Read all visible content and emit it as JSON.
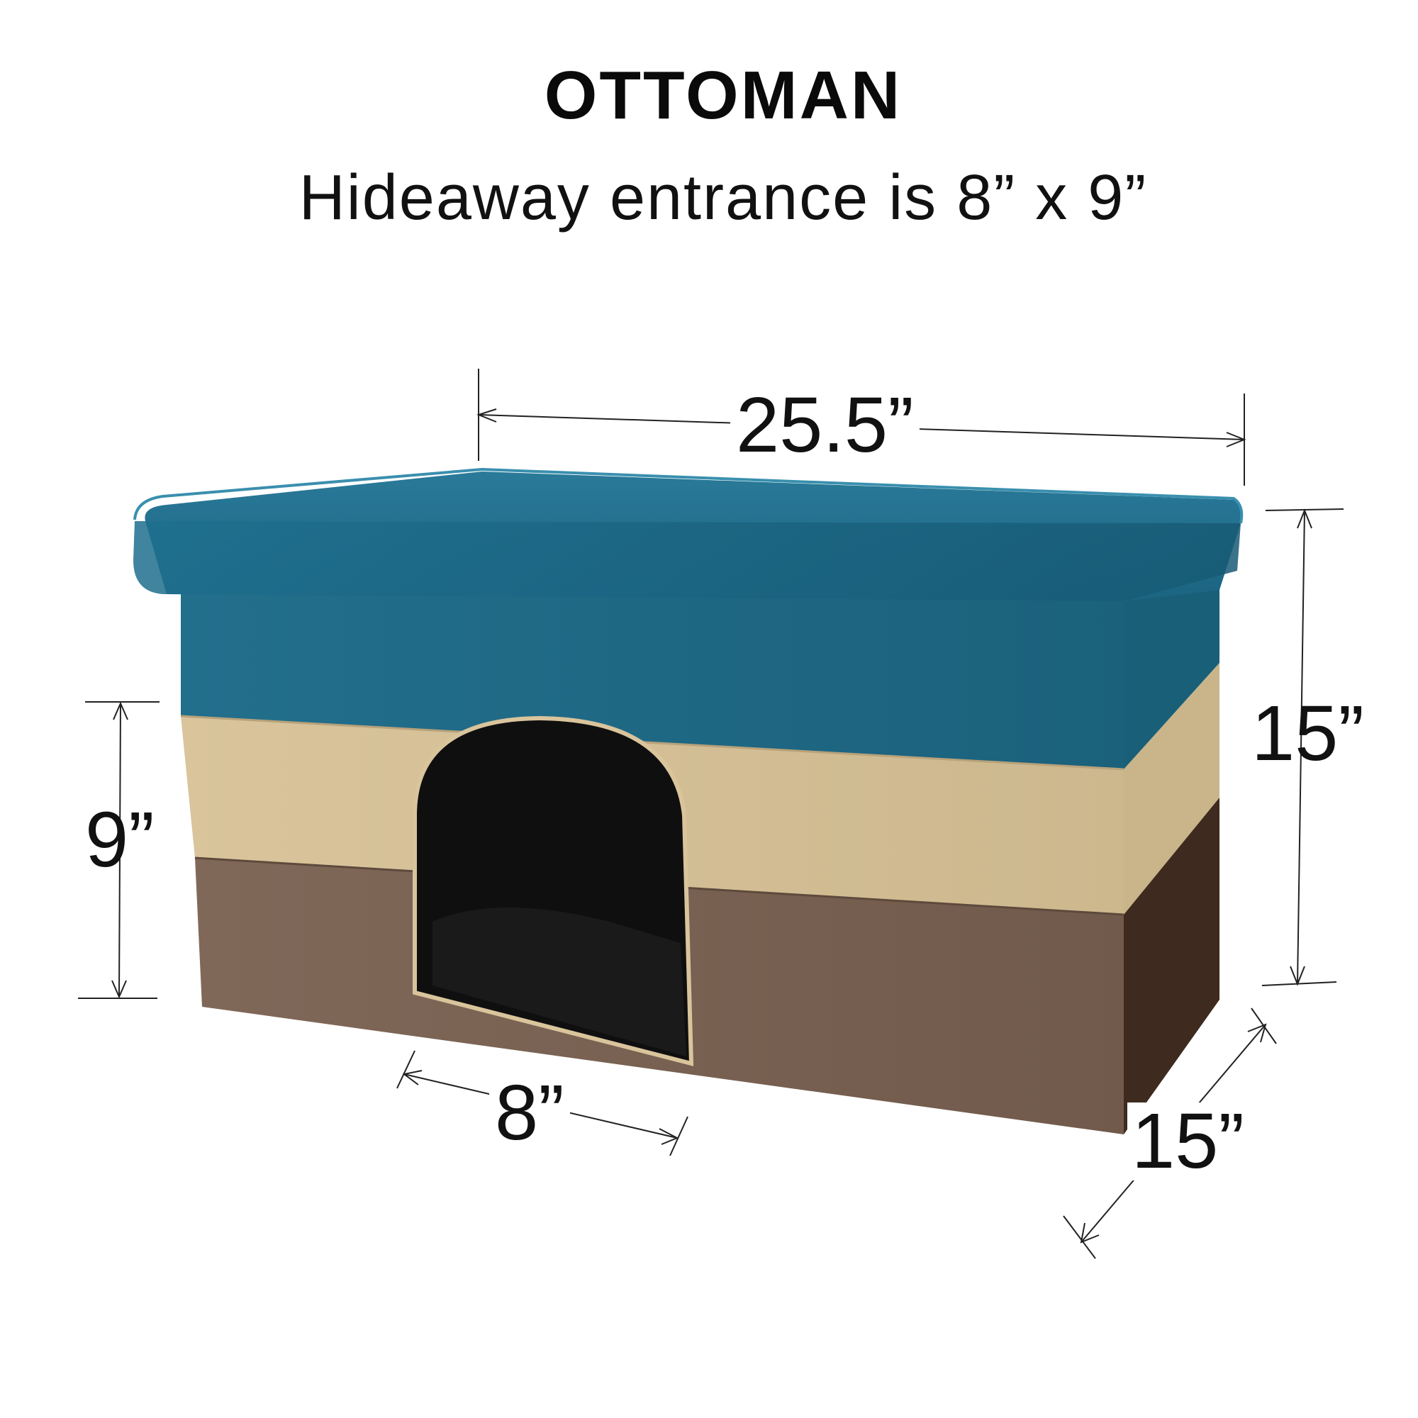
{
  "header": {
    "title": "OTTOMAN",
    "subtitle": "Hideaway entrance is 8” x 9”"
  },
  "dimensions": {
    "width": "25.5”",
    "height": "15”",
    "depth": "15”",
    "entrance_width": "8”",
    "entrance_height": "9”"
  },
  "colors": {
    "lid": "#1f6e8c",
    "middle_band": "#d6c198",
    "bottom_band": "#7a6252",
    "entrance": "#0f0f0f"
  }
}
